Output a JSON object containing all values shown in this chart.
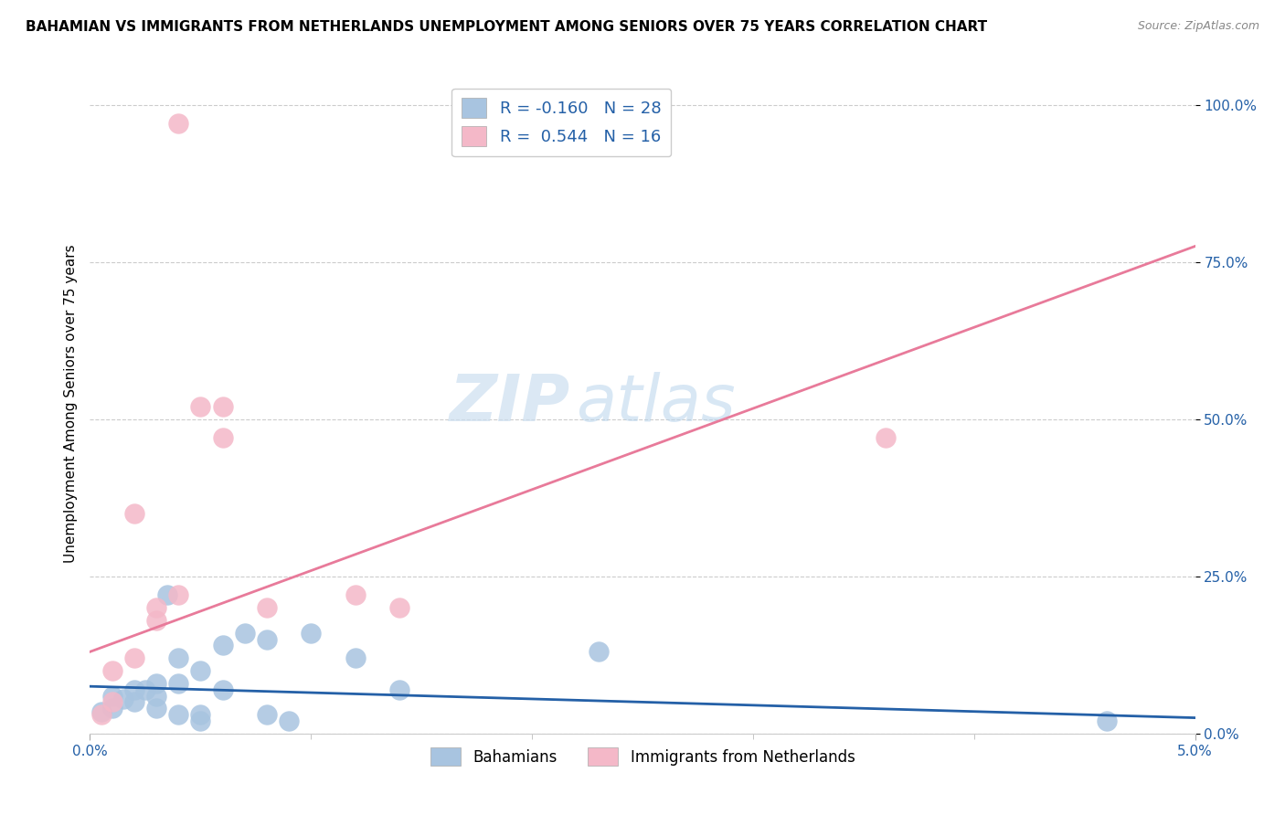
{
  "title": "BAHAMIAN VS IMMIGRANTS FROM NETHERLANDS UNEMPLOYMENT AMONG SENIORS OVER 75 YEARS CORRELATION CHART",
  "source": "Source: ZipAtlas.com",
  "ylabel": "Unemployment Among Seniors over 75 years",
  "xlim": [
    0.0,
    0.05
  ],
  "ylim": [
    0.0,
    1.05
  ],
  "xticks": [
    0.0,
    0.05
  ],
  "xtick_labels": [
    "0.0%",
    "5.0%"
  ],
  "ytick_labels": [
    "0.0%",
    "25.0%",
    "50.0%",
    "75.0%",
    "100.0%"
  ],
  "yticks": [
    0.0,
    0.25,
    0.5,
    0.75,
    1.0
  ],
  "blue_R": -0.16,
  "blue_N": 28,
  "pink_R": 0.544,
  "pink_N": 16,
  "blue_color": "#a8c4e0",
  "pink_color": "#f4b8c8",
  "blue_line_color": "#2460a7",
  "pink_line_color": "#e87a9a",
  "blue_scatter": [
    [
      0.0005,
      0.035
    ],
    [
      0.001,
      0.04
    ],
    [
      0.001,
      0.06
    ],
    [
      0.0015,
      0.055
    ],
    [
      0.002,
      0.05
    ],
    [
      0.002,
      0.07
    ],
    [
      0.0025,
      0.07
    ],
    [
      0.003,
      0.06
    ],
    [
      0.003,
      0.04
    ],
    [
      0.003,
      0.08
    ],
    [
      0.0035,
      0.22
    ],
    [
      0.004,
      0.08
    ],
    [
      0.004,
      0.12
    ],
    [
      0.004,
      0.03
    ],
    [
      0.005,
      0.03
    ],
    [
      0.005,
      0.1
    ],
    [
      0.005,
      0.02
    ],
    [
      0.006,
      0.14
    ],
    [
      0.006,
      0.07
    ],
    [
      0.007,
      0.16
    ],
    [
      0.008,
      0.15
    ],
    [
      0.008,
      0.03
    ],
    [
      0.009,
      0.02
    ],
    [
      0.01,
      0.16
    ],
    [
      0.012,
      0.12
    ],
    [
      0.014,
      0.07
    ],
    [
      0.023,
      0.13
    ],
    [
      0.046,
      0.02
    ]
  ],
  "pink_scatter": [
    [
      0.0005,
      0.03
    ],
    [
      0.001,
      0.1
    ],
    [
      0.001,
      0.05
    ],
    [
      0.002,
      0.12
    ],
    [
      0.002,
      0.35
    ],
    [
      0.003,
      0.18
    ],
    [
      0.003,
      0.2
    ],
    [
      0.004,
      0.22
    ],
    [
      0.004,
      0.97
    ],
    [
      0.005,
      0.52
    ],
    [
      0.006,
      0.47
    ],
    [
      0.006,
      0.52
    ],
    [
      0.008,
      0.2
    ],
    [
      0.012,
      0.22
    ],
    [
      0.014,
      0.2
    ],
    [
      0.036,
      0.47
    ]
  ],
  "watermark_zip": "ZIP",
  "watermark_atlas": "atlas",
  "legend_entries": [
    "Bahamians",
    "Immigrants from Netherlands"
  ],
  "blue_line_points": [
    [
      0.0,
      0.075
    ],
    [
      0.05,
      0.025
    ]
  ],
  "pink_line_points": [
    [
      0.0,
      0.13
    ],
    [
      0.05,
      0.775
    ]
  ]
}
